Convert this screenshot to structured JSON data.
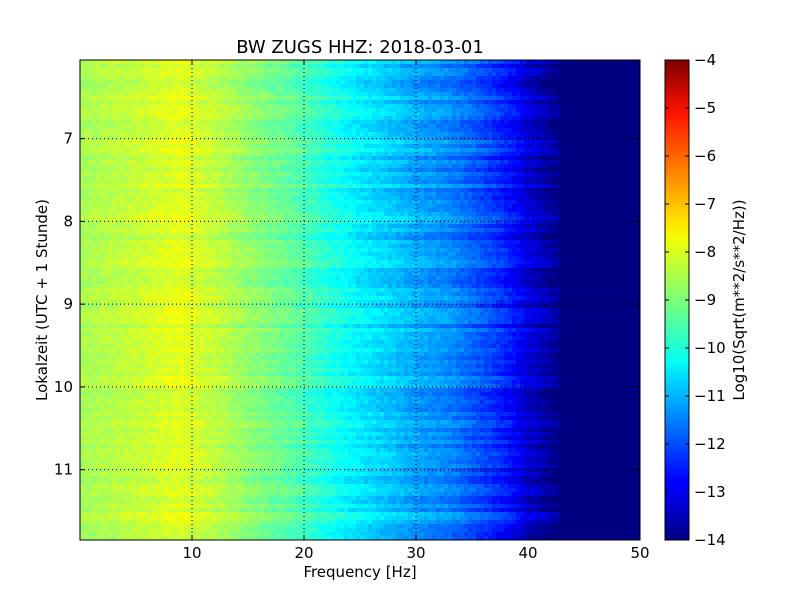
{
  "chart_data": {
    "type": "heatmap",
    "title": "BW ZUGS HHZ: 2018-03-01",
    "xlabel": "Frequency [Hz]",
    "ylabel": "Lokalzeit (UTC + 1 Stunde)",
    "xlim": [
      0,
      50
    ],
    "ylim": [
      6.05,
      11.85
    ],
    "y_inverted": true,
    "x_ticks": [
      10,
      20,
      30,
      40,
      50
    ],
    "y_ticks": [
      7,
      8,
      9,
      10,
      11
    ],
    "grid": true,
    "colorbar": {
      "label": "Log10(Sqrt(m**2/s**2/Hz))",
      "range": [
        -14,
        -4
      ],
      "ticks": [
        -4,
        -5,
        -6,
        -7,
        -8,
        -9,
        -10,
        -11,
        -12,
        -13,
        -14
      ],
      "colormap": "jet"
    },
    "spectral_profile": {
      "frequency_hz": [
        0,
        5,
        9,
        12,
        15,
        18,
        20,
        22,
        25,
        28,
        30,
        33,
        35,
        37,
        38.5,
        40,
        41,
        42,
        43,
        50
      ],
      "value": [
        -8.6,
        -8.3,
        -8.0,
        -8.35,
        -8.8,
        -9.2,
        -9.5,
        -9.9,
        -10.4,
        -10.8,
        -11.1,
        -11.4,
        -11.8,
        -12.2,
        -12.6,
        -13.1,
        -13.4,
        -13.7,
        -14.0,
        -14.0
      ]
    }
  }
}
